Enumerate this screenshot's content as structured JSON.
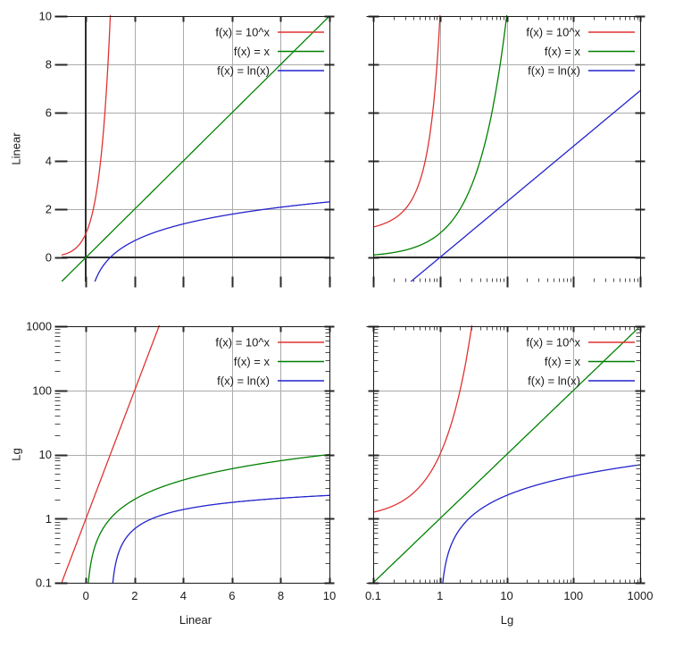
{
  "chart_data": {
    "type": "line",
    "title": "",
    "description": "2x2 grid of gnuplot-style function plots comparing linear and logarithmic axis scales",
    "series": [
      {
        "name": "f(x) = 10^x",
        "fn": "pow10",
        "color": "#e03232"
      },
      {
        "name": "f(x) = x",
        "fn": "identity",
        "color": "#008000"
      },
      {
        "name": "f(x) = ln(x)",
        "fn": "ln",
        "color": "#2222cc"
      }
    ],
    "plots": [
      {
        "id": "linear-linear",
        "x": {
          "scale": "linear",
          "min": -1,
          "max": 10,
          "ticks": [
            0,
            2,
            4,
            6,
            8,
            10
          ],
          "tick_labels": null,
          "title": ""
        },
        "y": {
          "scale": "linear",
          "min": -1,
          "max": 10,
          "ticks": [
            0,
            2,
            4,
            6,
            8,
            10
          ],
          "tick_labels": [
            "0",
            "2",
            "4",
            "6",
            "8",
            "10"
          ],
          "title": "Linear"
        },
        "zero_h": true,
        "zero_v": true,
        "legend": true
      },
      {
        "id": "linear-log",
        "x": {
          "scale": "log",
          "min": 0.1,
          "max": 1000,
          "ticks": [
            0.1,
            1,
            10,
            100,
            1000
          ],
          "tick_labels": null,
          "title": ""
        },
        "y": {
          "scale": "linear",
          "min": -1,
          "max": 10,
          "ticks": [
            0,
            2,
            4,
            6,
            8,
            10
          ],
          "tick_labels": null,
          "title": ""
        },
        "zero_h": true,
        "zero_v": false,
        "legend": true
      },
      {
        "id": "log-linear",
        "x": {
          "scale": "linear",
          "min": -1,
          "max": 10,
          "ticks": [
            0,
            2,
            4,
            6,
            8,
            10
          ],
          "tick_labels": [
            "0",
            "2",
            "4",
            "6",
            "8",
            "10"
          ],
          "title": "Linear"
        },
        "y": {
          "scale": "log",
          "min": 0.1,
          "max": 1000,
          "ticks": [
            0.1,
            1,
            10,
            100,
            1000
          ],
          "tick_labels": [
            "0.1",
            "1",
            "10",
            "100",
            "1000"
          ],
          "title": "Lg"
        },
        "zero_h": false,
        "zero_v": false,
        "legend": true
      },
      {
        "id": "log-log",
        "x": {
          "scale": "log",
          "min": 0.1,
          "max": 1000,
          "ticks": [
            0.1,
            1,
            10,
            100,
            1000
          ],
          "tick_labels": [
            "0.1",
            "1",
            "10",
            "100",
            "1000"
          ],
          "title": "Lg"
        },
        "y": {
          "scale": "log",
          "min": 0.1,
          "max": 1000,
          "ticks": [
            0.1,
            1,
            10,
            100,
            1000
          ],
          "tick_labels": null,
          "title": ""
        },
        "zero_h": false,
        "zero_v": false,
        "legend": true
      }
    ],
    "style": {
      "background": "#ffffff",
      "grid_color": "#ababab",
      "border_color": "#1a1a1a",
      "major_tick_color": "#2b2b2b",
      "minor_tick_color": "#4d4d4d",
      "zeroaxis_color": "#2e2e2e",
      "text_color": "#1a1a1a"
    }
  }
}
